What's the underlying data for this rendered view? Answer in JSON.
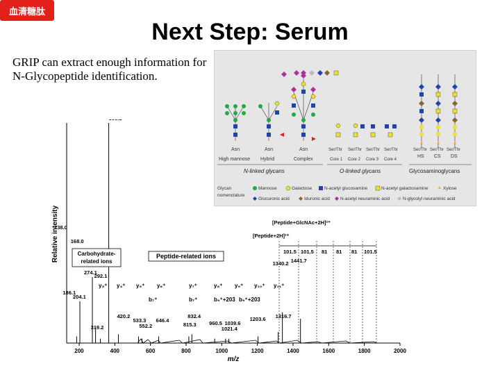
{
  "badge": {
    "label": "血清糖肽",
    "color": "#e3201a"
  },
  "slide": {
    "title": "Next Step: Serum",
    "body": "GRIP can extract enough information for N-Glycopeptide identification."
  },
  "spectrum": {
    "ylabel": "Relative intensity",
    "xlabel": "m/z",
    "xticks": [
      "200",
      "400",
      "600",
      "800",
      "1000",
      "1200",
      "1400",
      "1600",
      "1800",
      "2000"
    ],
    "carb_box": "Carbohydrate-related ions",
    "pep_box": "Peptide-related ions",
    "ion_labels": {
      "bracket1": "[Peptide+GlcNAc+2H]²⁺",
      "bracket2": "[Peptide+2H]²⁺",
      "diffs": [
        "101.5",
        "101.5",
        "81",
        "81",
        "81",
        "101.5"
      ],
      "y_ions": [
        "y₃⁺",
        "y₄⁺",
        "y₅⁺",
        "y₆⁺",
        "y₇⁺",
        "y₈⁺",
        "y₉⁺",
        "y₁₀⁺",
        "y₁₁⁺"
      ],
      "b_ions": [
        "b₇⁺",
        "b₇⁺",
        "b₉⁺+203",
        "b₉⁺+203"
      ]
    },
    "peak_labels": [
      {
        "mz": 366.1,
        "text": "366.1"
      },
      {
        "mz": 274.1,
        "text": "274.1"
      },
      {
        "mz": 204.1,
        "text": "204.1"
      },
      {
        "mz": 138.0,
        "text": "138.0"
      },
      {
        "mz": 168.0,
        "text": "168.0"
      },
      {
        "mz": 292.1,
        "text": "292.1"
      },
      {
        "mz": 186.1,
        "text": "186.1"
      },
      {
        "mz": 319.2,
        "text": "319.2"
      },
      {
        "mz": 420.2,
        "text": "420.2"
      },
      {
        "mz": 533.3,
        "text": "533.3"
      },
      {
        "mz": 552.2,
        "text": "552.2"
      },
      {
        "mz": 646.4,
        "text": "646.4"
      },
      {
        "mz": 815.3,
        "text": "815.3"
      },
      {
        "mz": 832.4,
        "text": "832.4"
      },
      {
        "mz": 960.5,
        "text": "960.5"
      },
      {
        "mz": 1021.4,
        "text": "1021.4"
      },
      {
        "mz": 1039.6,
        "text": "1039.6"
      },
      {
        "mz": 1203.6,
        "text": "1203.6"
      },
      {
        "mz": 1316.7,
        "text": "1316.7"
      },
      {
        "mz": 1340.2,
        "text": "1340.2"
      },
      {
        "mz": 1441.7,
        "text": "1441.7"
      }
    ]
  },
  "glycan": {
    "categories": [
      "N-linked glycans",
      "O-linked glycans",
      "Glycosaminoglycans"
    ],
    "nlinked_types": [
      "High mannose",
      "Hybrid",
      "Complex"
    ],
    "nlinked_root": "Asn",
    "olinked_cores": [
      "Core 1",
      "Core 2",
      "Core 3",
      "Core 4"
    ],
    "olinked_root": "Ser/Thr",
    "gag_types": [
      "HS",
      "CS",
      "DS"
    ],
    "legend_title": "Glycan nomenclature",
    "legend": [
      {
        "name": "Mannose",
        "color": "#22aa44",
        "shape": "circle"
      },
      {
        "name": "Galactose",
        "color": "#f0e030",
        "shape": "circle"
      },
      {
        "name": "N-acetyl glucosamine",
        "color": "#2244aa",
        "shape": "square"
      },
      {
        "name": "N-acetyl galactosamine",
        "color": "#f0e030",
        "shape": "square"
      },
      {
        "name": "Xylose",
        "color": "#f2a43a",
        "shape": "star"
      },
      {
        "name": "Glucuronic acid",
        "color": "#2244aa",
        "shape": "diamond"
      },
      {
        "name": "Iduronic acid",
        "color": "#886633",
        "shape": "diamond"
      },
      {
        "name": "N-acetyl neuraminic acid",
        "color": "#aa3399",
        "shape": "diamond"
      },
      {
        "name": "N-glycolyl neuraminic acid",
        "color": "#bbbbbb",
        "shape": "diamond"
      }
    ]
  }
}
